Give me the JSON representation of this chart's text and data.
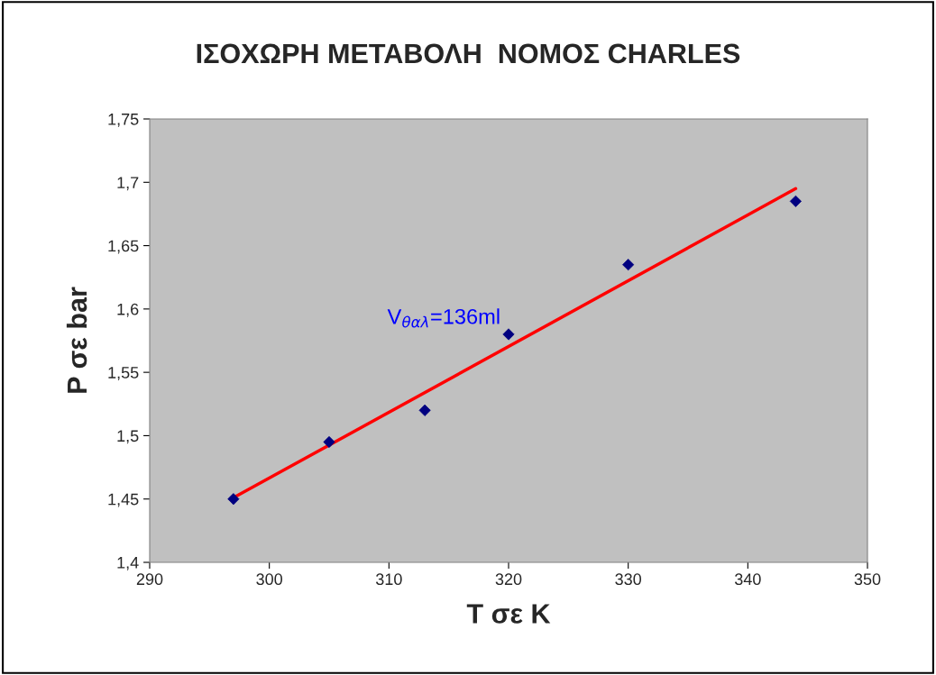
{
  "chart_data": {
    "type": "scatter",
    "title": "ΙΣΟΧΩΡΗ ΜΕΤΑΒΟΛΗ  ΝΟΜΟΣ CHARLES",
    "xlabel": "T σε K",
    "ylabel": "P σε bar",
    "annotations": [
      "V$_{θαλ}$=136ml"
    ],
    "x": [
      297,
      305,
      313,
      320,
      330,
      344
    ],
    "series": [
      {
        "color": "#000080",
        "marker": "diamond",
        "values": [
          1.45,
          1.495,
          1.52,
          1.58,
          1.635,
          1.685
        ]
      },
      {
        "type": "line",
        "color": "#ff0000",
        "marker": "none",
        "line_style": "solid",
        "x": [
          297,
          344
        ],
        "values": [
          1.451,
          1.695
        ]
      }
    ],
    "xlim": [
      290,
      350
    ],
    "xticks": [
      290,
      300,
      310,
      320,
      330,
      340,
      350
    ],
    "ylim": [
      1.4,
      1.75
    ],
    "yticks": [
      {
        "value": 1.4,
        "label": "1,4"
      },
      {
        "value": 1.45,
        "label": "1,45"
      },
      {
        "value": 1.5,
        "label": "1,5"
      },
      {
        "value": 1.55,
        "label": "1,55"
      },
      {
        "value": 1.6,
        "label": "1,6"
      },
      {
        "value": 1.65,
        "label": "1,65"
      },
      {
        "value": 1.7,
        "label": "1,7"
      },
      {
        "value": 1.75,
        "label": "1,75"
      }
    ],
    "grid": false,
    "legend": false
  }
}
